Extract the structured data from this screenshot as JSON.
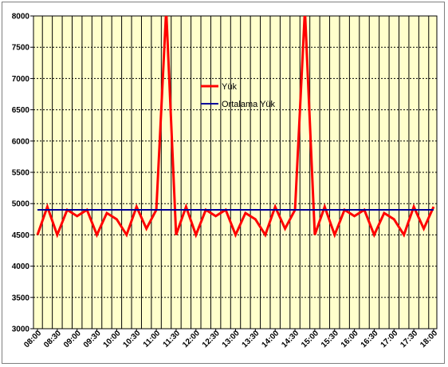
{
  "colors": {
    "plot_background": "#ffffcc",
    "series_line": "#ff0000",
    "average_line": "#000099",
    "grid": "#000000"
  },
  "chart_data": {
    "type": "line",
    "title": "",
    "xlabel": "",
    "ylabel": "",
    "ylim": [
      3000,
      8000
    ],
    "y_ticks": [
      "3000",
      "3500",
      "4000",
      "4500",
      "5000",
      "5500",
      "6000",
      "6500",
      "7000",
      "7500",
      "8000"
    ],
    "x_tick_labels": [
      "08:00",
      "08:30",
      "09:00",
      "09:30",
      "10:00",
      "10:30",
      "11:00",
      "11:30",
      "12:00",
      "12:30",
      "13:00",
      "13:30",
      "14:00",
      "14:30",
      "15:00",
      "15:30",
      "16:00",
      "16:30",
      "17:00",
      "17:30",
      "18:00"
    ],
    "grid": true,
    "legend_position": "center",
    "series": [
      {
        "name": "Yük",
        "color": "#ff0000",
        "x": [
          "08:00",
          "08:15",
          "08:30",
          "08:45",
          "09:00",
          "09:15",
          "09:30",
          "09:45",
          "10:00",
          "10:15",
          "10:30",
          "10:45",
          "11:00",
          "11:15",
          "11:30",
          "11:45",
          "12:00",
          "12:15",
          "12:30",
          "12:45",
          "13:00",
          "13:15",
          "13:30",
          "13:45",
          "14:00",
          "14:15",
          "14:30",
          "14:45",
          "15:00",
          "15:15",
          "15:30",
          "15:45",
          "16:00",
          "16:15",
          "16:30",
          "16:45",
          "17:00",
          "17:15",
          "17:30",
          "17:45",
          "18:00"
        ],
        "values": [
          4500,
          4950,
          4500,
          4900,
          4800,
          4900,
          4500,
          4850,
          4750,
          4500,
          4950,
          4600,
          4900,
          8100,
          4500,
          4950,
          4500,
          4900,
          4800,
          4900,
          4500,
          4850,
          4750,
          4500,
          4950,
          4600,
          4900,
          8100,
          4500,
          4950,
          4500,
          4900,
          4800,
          4900,
          4500,
          4850,
          4750,
          4500,
          4950,
          4600,
          4950
        ]
      },
      {
        "name": "Ortalama Yük",
        "color": "#000099",
        "x": [
          "08:00",
          "18:00"
        ],
        "values": [
          4900,
          4900
        ]
      }
    ]
  }
}
